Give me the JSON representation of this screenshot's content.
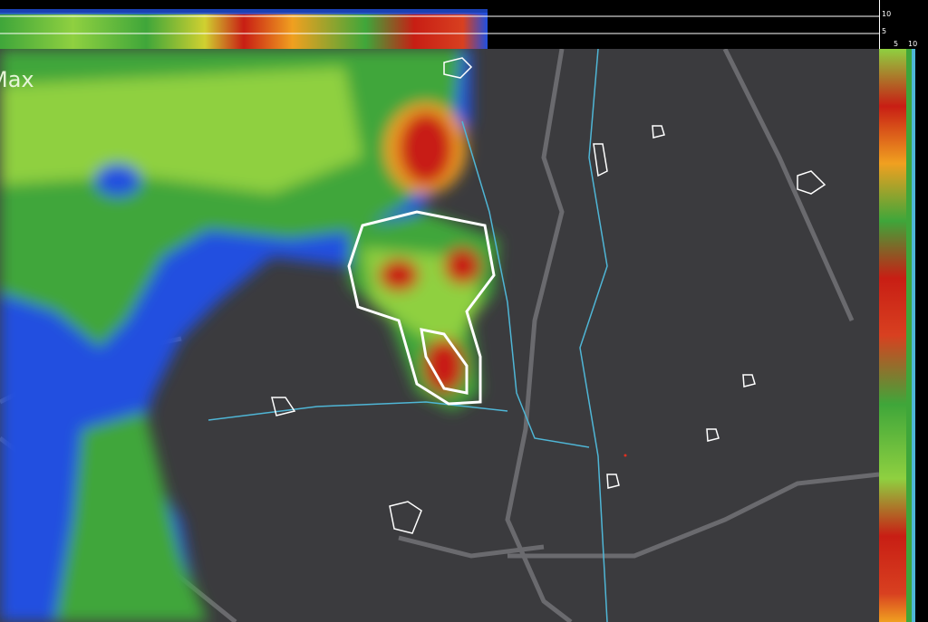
{
  "map_label": "Max",
  "cross_section": {
    "top_axis_ticks": [
      "10",
      "5"
    ],
    "side_axis_ticks": [
      "5",
      "10"
    ]
  },
  "colors": {
    "background": "#3b3b3e",
    "light_precip": "#2050e0",
    "moderate_precip": "#3fa63a",
    "heavy_precip": "#f0d020",
    "intense_precip": "#c81e14",
    "outline": "#ffffff",
    "rivers": "#4fb6d6",
    "boundaries": "#6a6a6e"
  },
  "icons": [
    "storm-cell-outline",
    "river-line",
    "boundary-line"
  ]
}
